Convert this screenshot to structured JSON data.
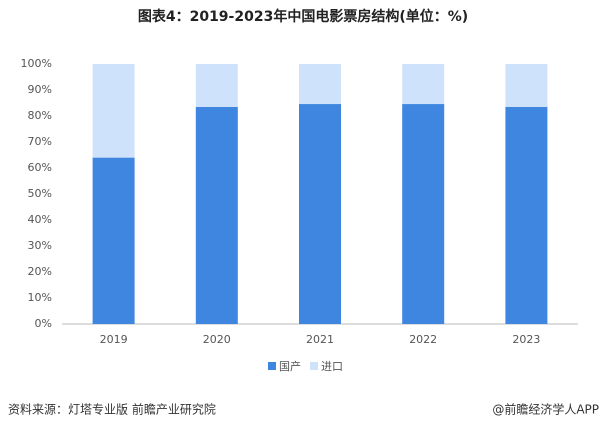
{
  "chart_data": {
    "type": "stacked_bar",
    "title": "图表4：2019-2023年中国电影票房结构(单位：%)",
    "categories": [
      "2019",
      "2020",
      "2021",
      "2022",
      "2023"
    ],
    "series": [
      {
        "name": "国产",
        "color": "#3f86e0",
        "values": [
          64,
          83.5,
          84.6,
          84.6,
          83.5
        ]
      },
      {
        "name": "进口",
        "color": "#cfe2fb",
        "values": [
          36,
          16.5,
          15.4,
          15.4,
          16.5
        ]
      }
    ],
    "ylim": [
      0,
      100
    ],
    "yticks": [
      {
        "value": 0,
        "label": "0%"
      },
      {
        "value": 10,
        "label": "10%"
      },
      {
        "value": 20,
        "label": "20%"
      },
      {
        "value": 30,
        "label": "30%"
      },
      {
        "value": 40,
        "label": "40%"
      },
      {
        "value": 50,
        "label": "50%"
      },
      {
        "value": 60,
        "label": "60%"
      },
      {
        "value": 70,
        "label": "70%"
      },
      {
        "value": 80,
        "label": "80%"
      },
      {
        "value": 90,
        "label": "90%"
      },
      {
        "value": 100,
        "label": "100%"
      }
    ],
    "legend": "bottom",
    "source": "资料来源：灯塔专业版 前瞻产业研究院",
    "credit": "@前瞻经济学人APP"
  }
}
